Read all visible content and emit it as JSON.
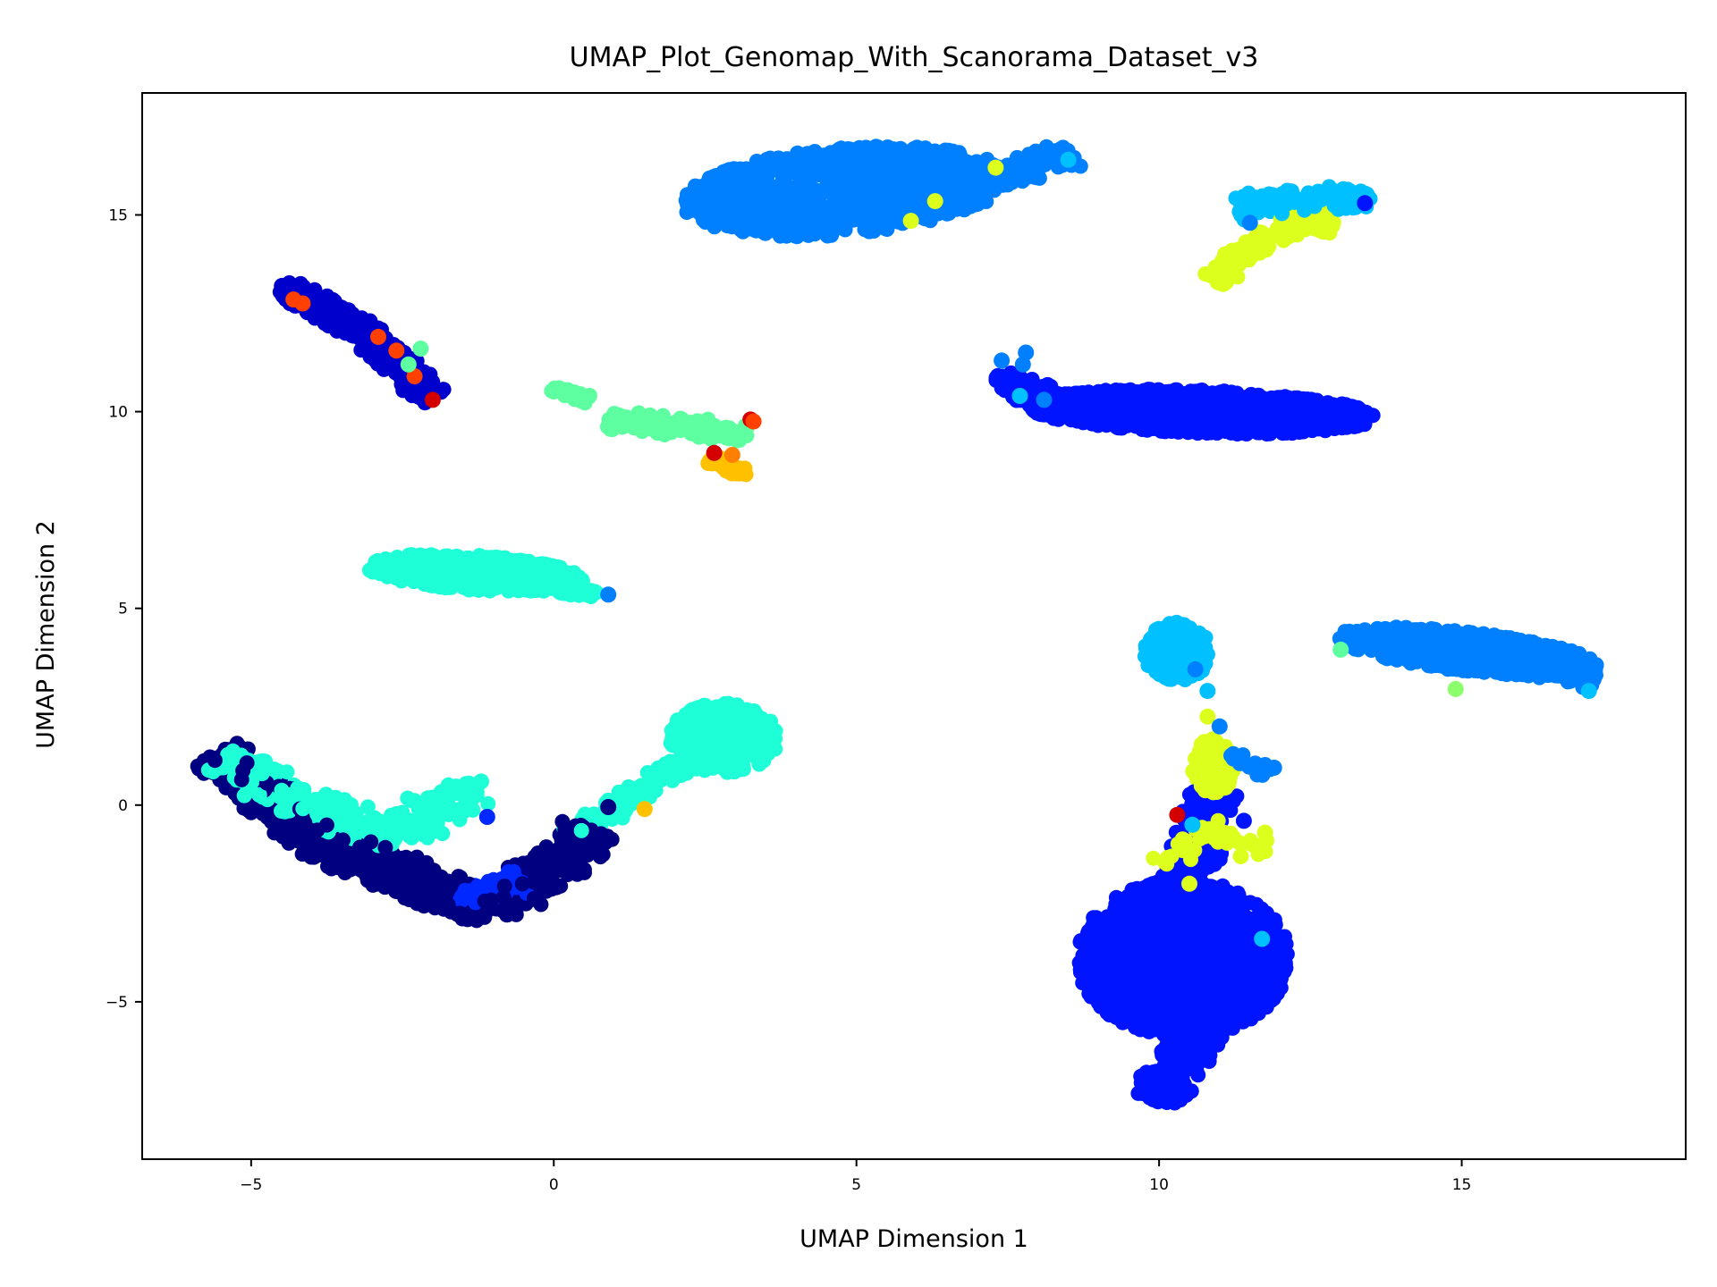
{
  "chart_data": {
    "type": "scatter",
    "title": "UMAP_Plot_Genomap_With_Scanorama_Dataset_v3",
    "xlabel": "UMAP Dimension 1",
    "ylabel": "UMAP Dimension 2",
    "xlim": [
      -6.8,
      18.7
    ],
    "ylim": [
      -9.0,
      18.1
    ],
    "xticks": [
      -5,
      0,
      5,
      10,
      15
    ],
    "yticks": [
      -5,
      0,
      5,
      10,
      15
    ],
    "xtick_labels": [
      "−5",
      "0",
      "5",
      "10",
      "15"
    ],
    "ytick_labels": [
      "−5",
      "0",
      "5",
      "10",
      "15"
    ],
    "grid": false,
    "legend": "none",
    "colormap": "jet",
    "clusters": [
      {
        "id": "c1",
        "color": "#0080ff",
        "shape": "blob",
        "cx": 4.8,
        "cy": 15.6,
        "rx": 2.7,
        "ry": 1.1,
        "tilt": 8,
        "n": 900
      },
      {
        "id": "c2",
        "color": "#0080ff",
        "shape": "segment",
        "path": [
          [
            4.8,
            15.6
          ],
          [
            6.5,
            15.8
          ],
          [
            8.0,
            16.3
          ],
          [
            8.6,
            16.7
          ]
        ],
        "width": 0.5,
        "n": 180
      },
      {
        "id": "c3",
        "color": "#00c0ff",
        "shape": "segment",
        "path": [
          [
            11.3,
            15.2
          ],
          [
            12.3,
            15.4
          ],
          [
            13.5,
            15.4
          ]
        ],
        "width": 0.35,
        "n": 160
      },
      {
        "id": "c4",
        "color": "#dcff1e",
        "shape": "segment",
        "path": [
          [
            10.9,
            13.3
          ],
          [
            11.4,
            14.1
          ],
          [
            12.2,
            14.7
          ],
          [
            12.9,
            14.8
          ]
        ],
        "width": 0.3,
        "n": 140
      },
      {
        "id": "c5",
        "color": "#0014ff",
        "shape": "blob",
        "cx": 10.7,
        "cy": 10.0,
        "rx": 2.9,
        "ry": 0.55,
        "tilt": -3,
        "n": 1100
      },
      {
        "id": "c6",
        "color": "#0014ff",
        "shape": "segment",
        "path": [
          [
            7.3,
            10.9
          ],
          [
            8.3,
            10.2
          ],
          [
            9.5,
            10.0
          ]
        ],
        "width": 0.35,
        "n": 160
      },
      {
        "id": "c7",
        "color": "#0000cd",
        "shape": "segment",
        "path": [
          [
            -4.5,
            13.2
          ],
          [
            -3.3,
            12.2
          ],
          [
            -2.3,
            10.8
          ],
          [
            -2.0,
            10.3
          ]
        ],
        "width": 0.35,
        "n": 320
      },
      {
        "id": "c8",
        "color": "#5dffa0",
        "shape": "segment",
        "path": [
          [
            0.0,
            10.6
          ],
          [
            0.6,
            10.3
          ]
        ],
        "width": 0.15,
        "n": 40
      },
      {
        "id": "c9",
        "color": "#5dffa0",
        "shape": "segment",
        "path": [
          [
            0.9,
            9.8
          ],
          [
            2.2,
            9.6
          ],
          [
            3.2,
            9.4
          ]
        ],
        "width": 0.3,
        "n": 130
      },
      {
        "id": "c10",
        "color": "#ffc000",
        "shape": "segment",
        "path": [
          [
            2.6,
            8.8
          ],
          [
            3.2,
            8.4
          ]
        ],
        "width": 0.15,
        "n": 40
      },
      {
        "id": "c11",
        "color": "#1effd8",
        "shape": "blob",
        "cx": -1.3,
        "cy": 5.9,
        "rx": 1.8,
        "ry": 0.45,
        "tilt": -6,
        "n": 450
      },
      {
        "id": "c12",
        "color": "#1effd8",
        "shape": "segment",
        "path": [
          [
            0.0,
            5.5
          ],
          [
            0.7,
            5.35
          ]
        ],
        "width": 0.15,
        "n": 40
      },
      {
        "id": "c13",
        "color": "#00c0ff",
        "shape": "blob",
        "cx": 10.3,
        "cy": 3.9,
        "rx": 0.55,
        "ry": 0.75,
        "tilt": 0,
        "n": 160
      },
      {
        "id": "c14",
        "color": "#0080ff",
        "shape": "blob",
        "cx": 15.1,
        "cy": 3.9,
        "rx": 2.2,
        "ry": 0.5,
        "tilt": -10,
        "n": 550
      },
      {
        "id": "c15",
        "color": "#0080ff",
        "shape": "segment",
        "path": [
          [
            16.0,
            3.6
          ],
          [
            17.2,
            3.2
          ]
        ],
        "width": 0.3,
        "n": 80
      },
      {
        "id": "c16",
        "color": "#1effd8",
        "shape": "blob",
        "cx": 2.8,
        "cy": 1.7,
        "rx": 0.9,
        "ry": 0.9,
        "tilt": 0,
        "n": 300
      },
      {
        "id": "c17",
        "color": "#1effd8",
        "shape": "segment",
        "path": [
          [
            2.1,
            1.0
          ],
          [
            1.2,
            0.1
          ],
          [
            0.3,
            -0.8
          ]
        ],
        "width": 0.3,
        "n": 110
      },
      {
        "id": "c18",
        "color": "#000080",
        "shape": "segment",
        "path": [
          [
            -5.6,
            1.3
          ],
          [
            -4.7,
            0.1
          ],
          [
            -3.6,
            -1.1
          ],
          [
            -2.2,
            -2.0
          ],
          [
            -1.0,
            -2.6
          ],
          [
            0.2,
            -1.3
          ],
          [
            0.6,
            -0.6
          ]
        ],
        "width": 0.55,
        "n": 1100
      },
      {
        "id": "c19",
        "color": "#1effd8",
        "shape": "segment",
        "path": [
          [
            -5.5,
            1.2
          ],
          [
            -4.5,
            0.3
          ],
          [
            -3.5,
            -0.4
          ],
          [
            -2.5,
            -0.7
          ],
          [
            -1.8,
            0.1
          ],
          [
            -1.3,
            0.4
          ]
        ],
        "width": 0.55,
        "n": 260
      },
      {
        "id": "c20",
        "color": "#0028ff",
        "shape": "segment",
        "path": [
          [
            -1.6,
            -2.4
          ],
          [
            -1.0,
            -2.2
          ],
          [
            -0.5,
            -1.9
          ]
        ],
        "width": 0.35,
        "n": 60
      },
      {
        "id": "c21",
        "color": "#0014ff",
        "shape": "blob",
        "cx": 10.4,
        "cy": -3.9,
        "rx": 1.75,
        "ry": 2.0,
        "tilt": 0,
        "n": 1300
      },
      {
        "id": "c22",
        "color": "#0014ff",
        "shape": "segment",
        "path": [
          [
            10.7,
            -5.2
          ],
          [
            10.4,
            -6.6
          ],
          [
            9.9,
            -7.5
          ]
        ],
        "width": 0.5,
        "n": 300
      },
      {
        "id": "c23",
        "color": "#0014ff",
        "shape": "segment",
        "path": [
          [
            10.4,
            -2.0
          ],
          [
            10.7,
            -0.8
          ],
          [
            10.9,
            0.4
          ]
        ],
        "width": 0.45,
        "n": 240
      },
      {
        "id": "c24",
        "color": "#dcff1e",
        "shape": "blob",
        "cx": 10.9,
        "cy": 1.0,
        "rx": 0.35,
        "ry": 0.7,
        "tilt": 0,
        "n": 140
      },
      {
        "id": "c25",
        "color": "#dcff1e",
        "shape": "segment",
        "path": [
          [
            10.0,
            -1.6
          ],
          [
            10.8,
            -0.6
          ],
          [
            11.8,
            -1.2
          ]
        ],
        "width": 0.3,
        "n": 50
      },
      {
        "id": "c26",
        "color": "#0080ff",
        "shape": "segment",
        "path": [
          [
            11.2,
            1.3
          ],
          [
            11.8,
            0.8
          ]
        ],
        "width": 0.2,
        "n": 25
      }
    ],
    "highlights": [
      {
        "x": -4.3,
        "y": 12.85,
        "color": "#ff4000"
      },
      {
        "x": -4.15,
        "y": 12.75,
        "color": "#ff4000"
      },
      {
        "x": -2.6,
        "y": 11.55,
        "color": "#ff4000"
      },
      {
        "x": -2.9,
        "y": 11.9,
        "color": "#ff4000"
      },
      {
        "x": -2.3,
        "y": 10.9,
        "color": "#ff4000"
      },
      {
        "x": -2.0,
        "y": 10.3,
        "color": "#d40000"
      },
      {
        "x": -2.2,
        "y": 11.6,
        "color": "#5dffa0"
      },
      {
        "x": -2.4,
        "y": 11.2,
        "color": "#5dffa0"
      },
      {
        "x": 3.25,
        "y": 9.8,
        "color": "#d40000"
      },
      {
        "x": 3.3,
        "y": 9.75,
        "color": "#ff4000"
      },
      {
        "x": 2.95,
        "y": 8.9,
        "color": "#ff8000"
      },
      {
        "x": 2.65,
        "y": 8.95,
        "color": "#d40000"
      },
      {
        "x": 0.9,
        "y": 5.35,
        "color": "#0080ff"
      },
      {
        "x": 7.8,
        "y": 11.5,
        "color": "#0080ff"
      },
      {
        "x": 7.75,
        "y": 11.2,
        "color": "#0080ff"
      },
      {
        "x": 7.7,
        "y": 10.4,
        "color": "#00c0ff"
      },
      {
        "x": 7.4,
        "y": 11.3,
        "color": "#0080ff"
      },
      {
        "x": 8.1,
        "y": 10.3,
        "color": "#0080ff"
      },
      {
        "x": 6.3,
        "y": 15.35,
        "color": "#dcff1e"
      },
      {
        "x": 5.9,
        "y": 14.85,
        "color": "#dcff1e"
      },
      {
        "x": 7.3,
        "y": 16.2,
        "color": "#dcff1e"
      },
      {
        "x": 8.5,
        "y": 16.4,
        "color": "#00c0ff"
      },
      {
        "x": 11.5,
        "y": 14.8,
        "color": "#0080ff"
      },
      {
        "x": 13.4,
        "y": 15.3,
        "color": "#0014ff"
      },
      {
        "x": 12.9,
        "y": 15.6,
        "color": "#00c0ff"
      },
      {
        "x": 13.0,
        "y": 3.95,
        "color": "#5dffa0"
      },
      {
        "x": 14.9,
        "y": 2.95,
        "color": "#8cff6c"
      },
      {
        "x": 17.1,
        "y": 2.9,
        "color": "#00c0ff"
      },
      {
        "x": 10.6,
        "y": 3.45,
        "color": "#0080ff"
      },
      {
        "x": 10.8,
        "y": 2.9,
        "color": "#00c0ff"
      },
      {
        "x": 10.8,
        "y": 2.25,
        "color": "#dcff1e"
      },
      {
        "x": 11.0,
        "y": 2.0,
        "color": "#0080ff"
      },
      {
        "x": 11.9,
        "y": 0.95,
        "color": "#0080ff"
      },
      {
        "x": 10.1,
        "y": -1.45,
        "color": "#dcff1e"
      },
      {
        "x": 10.5,
        "y": -2.0,
        "color": "#dcff1e"
      },
      {
        "x": 10.55,
        "y": -0.5,
        "color": "#00c0ff"
      },
      {
        "x": 11.4,
        "y": -0.4,
        "color": "#0014ff"
      },
      {
        "x": 11.35,
        "y": -1.3,
        "color": "#dcff1e"
      },
      {
        "x": 11.7,
        "y": -3.4,
        "color": "#00c0ff"
      },
      {
        "x": 11.75,
        "y": -0.7,
        "color": "#dcff1e"
      },
      {
        "x": 10.3,
        "y": -0.25,
        "color": "#d40000"
      },
      {
        "x": 0.9,
        "y": -0.05,
        "color": "#000080"
      },
      {
        "x": 1.5,
        "y": -0.1,
        "color": "#ffc000"
      },
      {
        "x": -1.1,
        "y": -0.3,
        "color": "#0028ff"
      },
      {
        "x": -3.7,
        "y": 0.1,
        "color": "#1effd8"
      },
      {
        "x": -1.2,
        "y": 0.6,
        "color": "#1effd8"
      }
    ]
  }
}
